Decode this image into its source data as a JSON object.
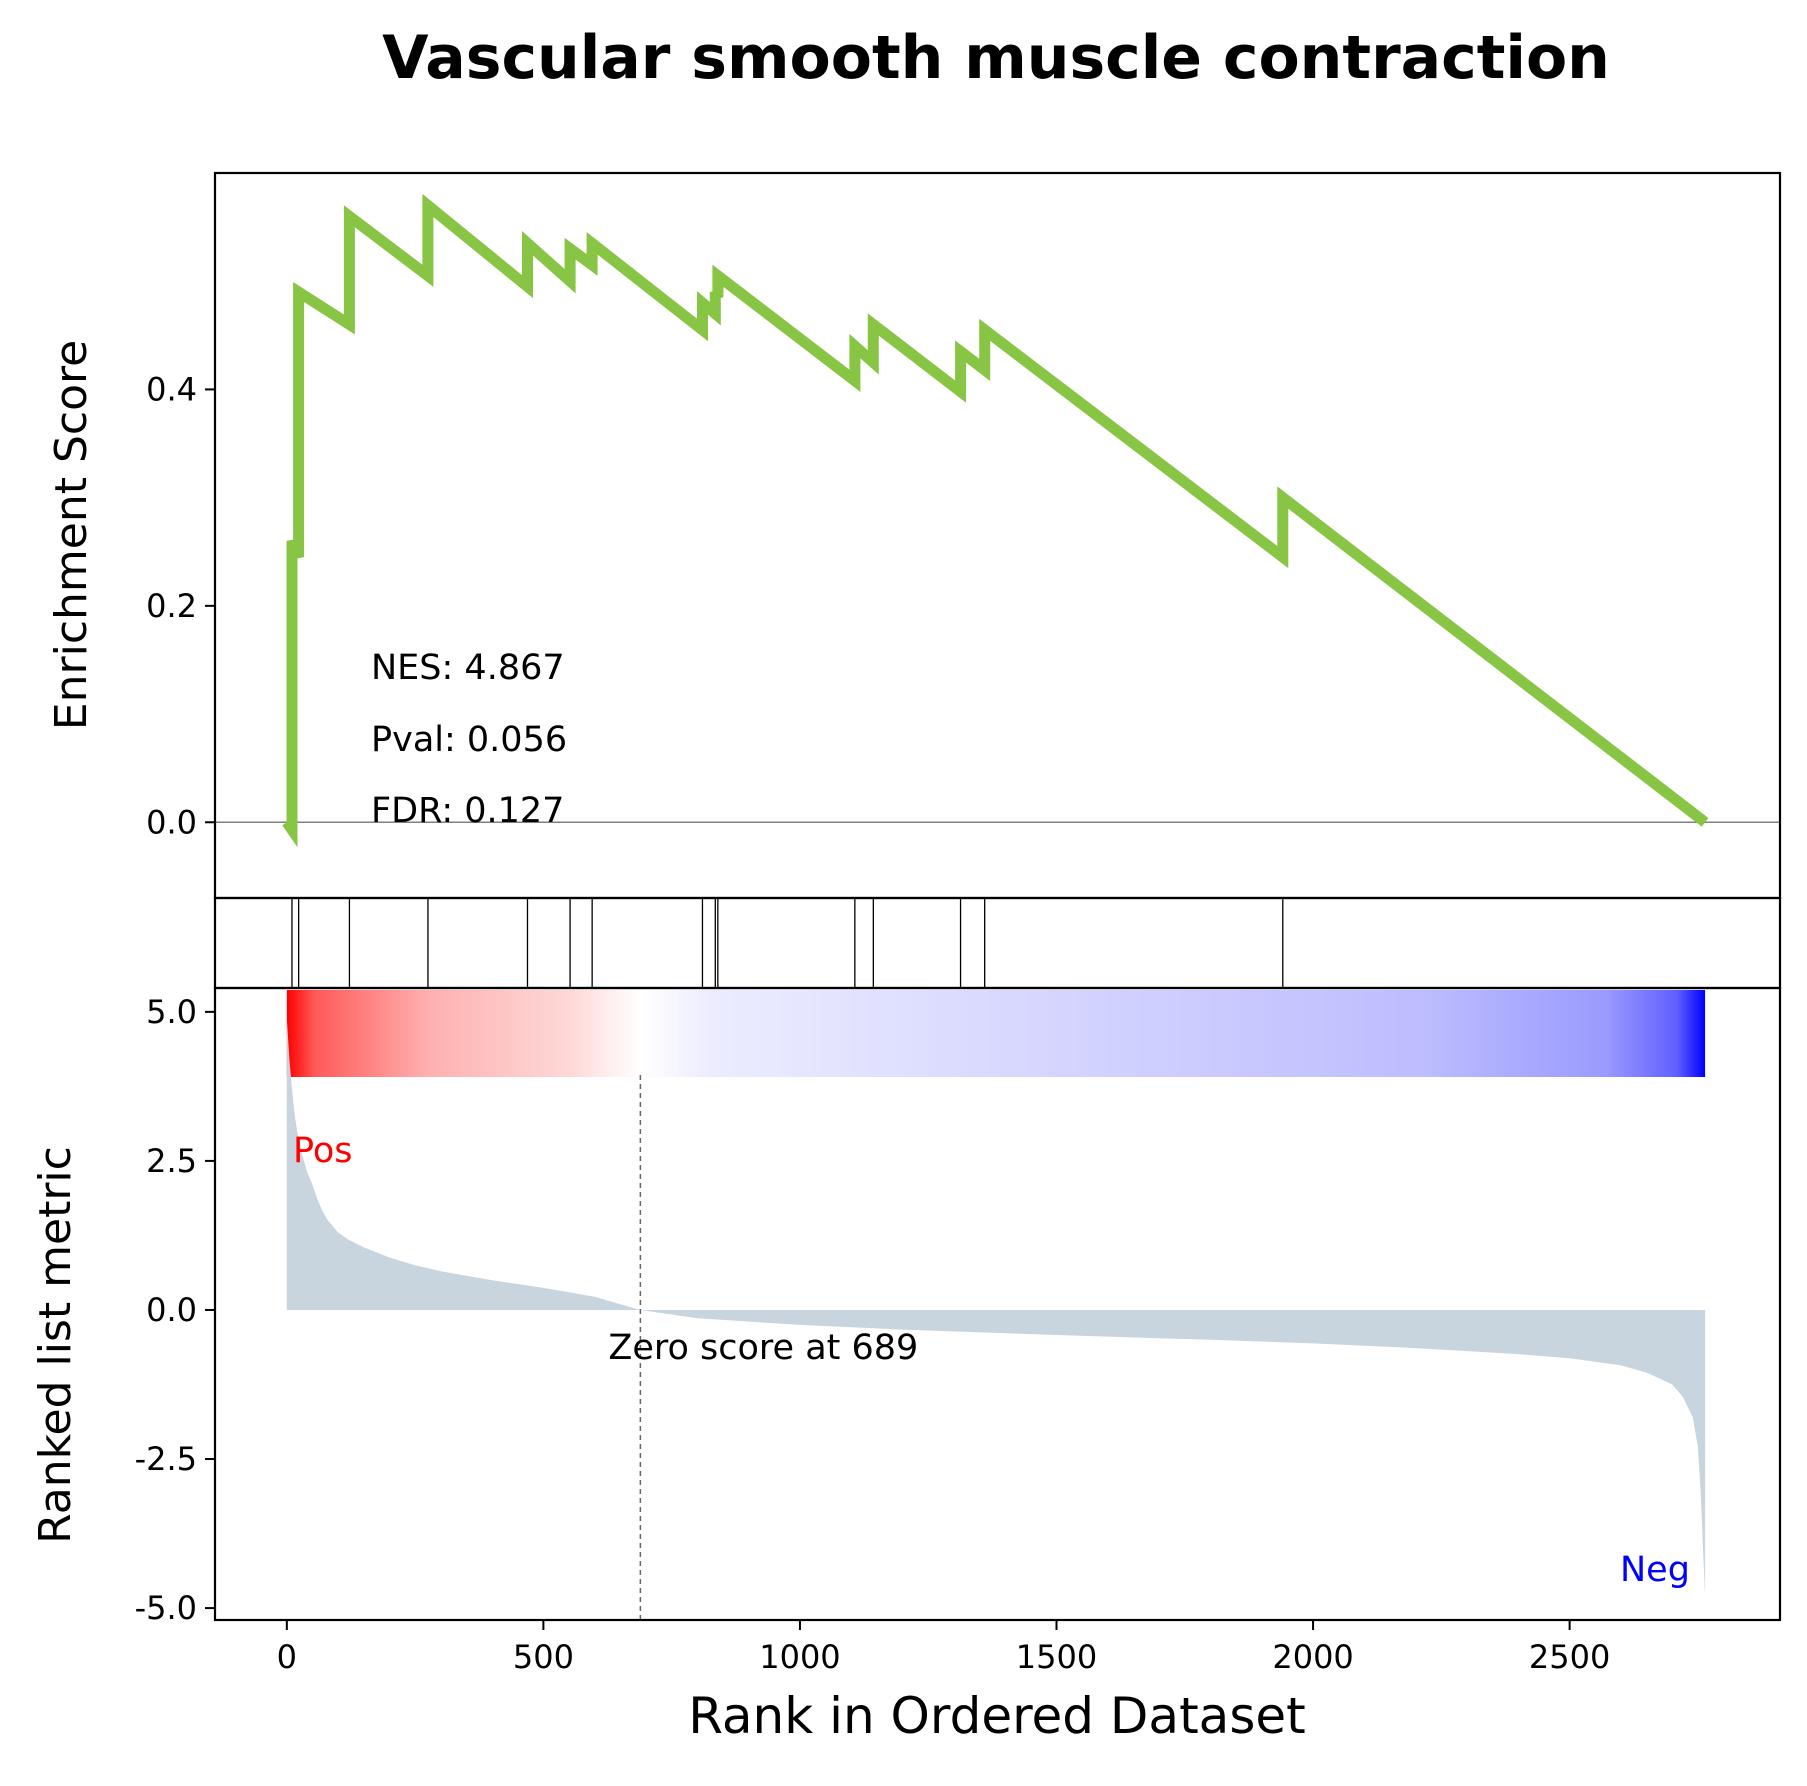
{
  "chart_data": {
    "type": "line",
    "title": "Vascular smooth muscle contraction",
    "xlabel": "Rank in Ordered Dataset",
    "xlim": [
      -140,
      2910
    ],
    "xticks": [
      0,
      500,
      1000,
      1500,
      2000,
      2500
    ],
    "n_genes": 2764,
    "colors": {
      "es_line": "#88c544",
      "ranked_fill": "#c9d5de",
      "pos_label": "#ff0000",
      "neg_label": "#0000ff",
      "gradient_pos": "#ff0000",
      "gradient_neg": "#0000ff"
    },
    "enrichment": {
      "ylabel": "Enrichment Score",
      "ylim": [
        -0.07,
        0.6
      ],
      "yticks": [
        0.0,
        0.2,
        0.4
      ],
      "stats": {
        "nes": "NES: 4.867",
        "pval": "Pval: 0.056",
        "fdr": "FDR: 0.127"
      },
      "x": [
        0,
        10,
        10,
        23,
        23,
        122,
        122,
        275,
        275,
        469,
        469,
        552,
        552,
        595,
        595,
        810,
        810,
        835,
        835,
        840,
        840,
        1107,
        1107,
        1143,
        1143,
        1313,
        1313,
        1360,
        1360,
        1941,
        1941,
        2764
      ],
      "y": [
        0.0,
        -0.007,
        0.26,
        0.245,
        0.49,
        0.46,
        0.56,
        0.505,
        0.57,
        0.495,
        0.535,
        0.5,
        0.53,
        0.515,
        0.535,
        0.455,
        0.48,
        0.47,
        0.49,
        0.485,
        0.505,
        0.408,
        0.44,
        0.425,
        0.46,
        0.398,
        0.435,
        0.418,
        0.455,
        0.245,
        0.3,
        0.0
      ]
    },
    "hits": [
      10,
      23,
      122,
      275,
      469,
      552,
      595,
      810,
      835,
      840,
      1107,
      1143,
      1313,
      1360,
      1941
    ],
    "ranked": {
      "ylabel": "Ranked list metric",
      "ylim": [
        -5.2,
        5.4
      ],
      "ytick_labels": [
        "5.0",
        "2.5",
        "0.0",
        "-2.5",
        "-5.0"
      ],
      "yticks": [
        5.0,
        2.5,
        0.0,
        -2.5,
        -5.0
      ],
      "zero_rank": 689,
      "zero_label": "Zero score at 689",
      "pos_label": "Pos",
      "neg_label": "Neg",
      "x": [
        0,
        5,
        10,
        15,
        20,
        30,
        40,
        50,
        60,
        70,
        80,
        100,
        120,
        150,
        200,
        250,
        300,
        400,
        500,
        600,
        689,
        800,
        1000,
        1200,
        1500,
        1800,
        2000,
        2200,
        2400,
        2500,
        2600,
        2650,
        2700,
        2720,
        2740,
        2750,
        2755,
        2760,
        2764
      ],
      "y": [
        4.9,
        4.2,
        3.7,
        3.3,
        3.0,
        2.6,
        2.3,
        2.1,
        1.85,
        1.65,
        1.5,
        1.3,
        1.18,
        1.05,
        0.88,
        0.75,
        0.65,
        0.5,
        0.37,
        0.22,
        0.0,
        -0.14,
        -0.25,
        -0.33,
        -0.42,
        -0.5,
        -0.56,
        -0.64,
        -0.74,
        -0.81,
        -0.93,
        -1.05,
        -1.25,
        -1.45,
        -1.8,
        -2.3,
        -3.0,
        -4.0,
        -4.8
      ]
    }
  }
}
